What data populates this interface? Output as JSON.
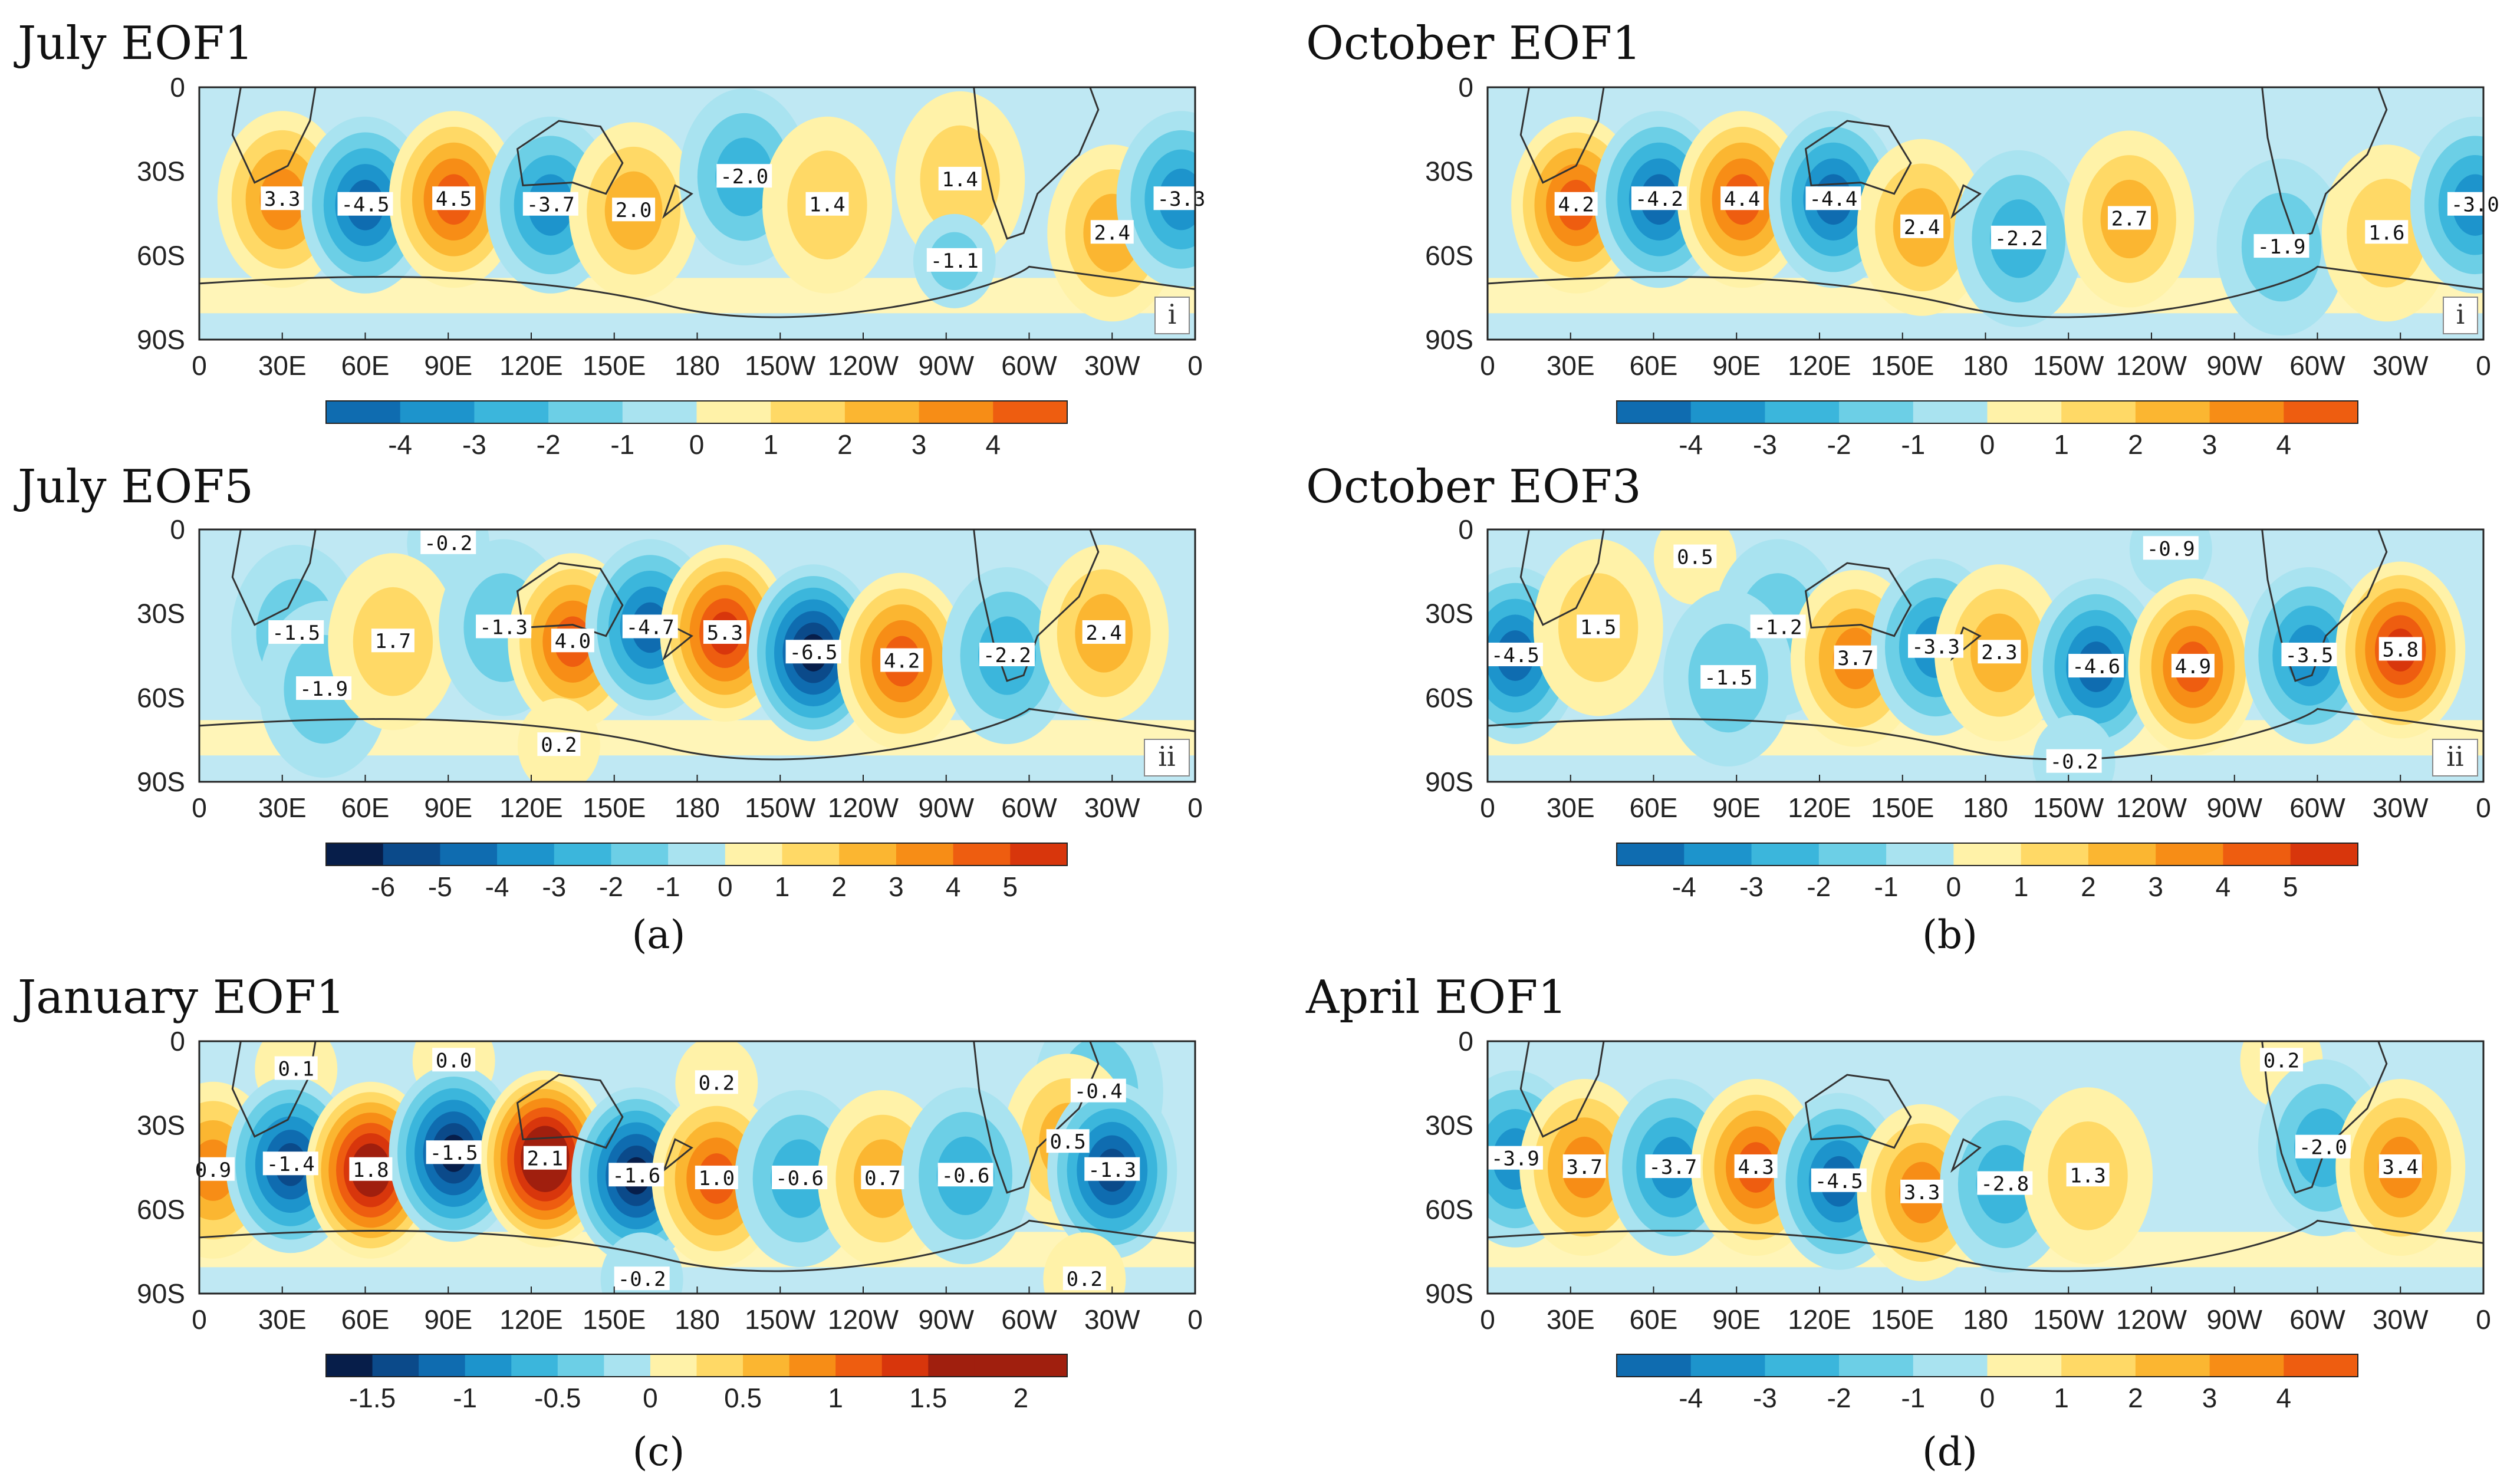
{
  "figure_labels": {
    "a": "(a)",
    "b": "(b)",
    "c": "(c)",
    "d": "(d)"
  },
  "chart_data": [
    {
      "type": "heatmap",
      "title": "July EOF1",
      "subpanel": "i",
      "xticks": [
        "0",
        "30E",
        "60E",
        "90E",
        "120E",
        "150E",
        "180",
        "150W",
        "120W",
        "90W",
        "60W",
        "30W",
        "0"
      ],
      "yticks": [
        "0",
        "30S",
        "60S",
        "90S"
      ],
      "colorbar": {
        "ticks": [
          "-4",
          "-3",
          "-2",
          "-1",
          "0",
          "1",
          "2",
          "3",
          "4"
        ],
        "min": -5,
        "max": 5,
        "step": 1
      },
      "centers": [
        {
          "lon": 30,
          "lat": -40,
          "value": 3.3
        },
        {
          "lon": 60,
          "lat": -42,
          "value": -4.5
        },
        {
          "lon": 92,
          "lat": -40,
          "value": 4.5
        },
        {
          "lon": 127,
          "lat": -42,
          "value": -3.7
        },
        {
          "lon": 157,
          "lat": -44,
          "value": 2.0
        },
        {
          "lon": 197,
          "lat": -32,
          "value": -2.0
        },
        {
          "lon": 227,
          "lat": -42,
          "value": 1.4
        },
        {
          "lon": 275,
          "lat": -33,
          "value": 1.4
        },
        {
          "lon": 273,
          "lat": -62,
          "value": -1.1
        },
        {
          "lon": 330,
          "lat": -52,
          "value": 2.4
        },
        {
          "lon": 355,
          "lat": -40,
          "value": -3.3
        }
      ]
    },
    {
      "type": "heatmap",
      "title": "October EOF1",
      "subpanel": "i",
      "xticks": [
        "0",
        "30E",
        "60E",
        "90E",
        "120E",
        "150E",
        "180",
        "150W",
        "120W",
        "90W",
        "60W",
        "30W",
        "0"
      ],
      "yticks": [
        "0",
        "30S",
        "60S",
        "90S"
      ],
      "colorbar": {
        "ticks": [
          "-4",
          "-3",
          "-2",
          "-1",
          "0",
          "1",
          "2",
          "3",
          "4"
        ],
        "min": -5,
        "max": 5,
        "step": 1
      },
      "centers": [
        {
          "lon": 32,
          "lat": -42,
          "value": 4.2
        },
        {
          "lon": 62,
          "lat": -40,
          "value": -4.2
        },
        {
          "lon": 92,
          "lat": -40,
          "value": 4.4
        },
        {
          "lon": 125,
          "lat": -40,
          "value": -4.4
        },
        {
          "lon": 157,
          "lat": -50,
          "value": 2.4
        },
        {
          "lon": 192,
          "lat": -54,
          "value": -2.2
        },
        {
          "lon": 232,
          "lat": -47,
          "value": 2.7
        },
        {
          "lon": 287,
          "lat": -57,
          "value": -1.9
        },
        {
          "lon": 325,
          "lat": -52,
          "value": 1.6
        },
        {
          "lon": 357,
          "lat": -42,
          "value": -3.0
        }
      ]
    },
    {
      "type": "heatmap",
      "title": "July EOF5",
      "subpanel": "ii",
      "xticks": [
        "0",
        "30E",
        "60E",
        "90E",
        "120E",
        "150E",
        "180",
        "150W",
        "120W",
        "90W",
        "60W",
        "30W",
        "0"
      ],
      "yticks": [
        "0",
        "30S",
        "60S",
        "90S"
      ],
      "colorbar": {
        "ticks": [
          "-6",
          "-5",
          "-4",
          "-3",
          "-2",
          "-1",
          "0",
          "1",
          "2",
          "3",
          "4",
          "5"
        ],
        "min": -7,
        "max": 6,
        "step": 1
      },
      "centers": [
        {
          "lon": 90,
          "lat": -5,
          "value": -0.2
        },
        {
          "lon": 35,
          "lat": -37,
          "value": -1.5
        },
        {
          "lon": 45,
          "lat": -57,
          "value": -1.9
        },
        {
          "lon": 70,
          "lat": -40,
          "value": 1.7
        },
        {
          "lon": 110,
          "lat": -35,
          "value": -1.3
        },
        {
          "lon": 135,
          "lat": -40,
          "value": 4.0
        },
        {
          "lon": 163,
          "lat": -35,
          "value": -4.7
        },
        {
          "lon": 190,
          "lat": -37,
          "value": 5.3
        },
        {
          "lon": 222,
          "lat": -44,
          "value": -6.5
        },
        {
          "lon": 254,
          "lat": -47,
          "value": 4.2
        },
        {
          "lon": 292,
          "lat": -45,
          "value": -2.2
        },
        {
          "lon": 327,
          "lat": -37,
          "value": 2.4
        },
        {
          "lon": 130,
          "lat": -77,
          "value": 0.2
        }
      ]
    },
    {
      "type": "heatmap",
      "title": "October EOF3",
      "subpanel": "ii",
      "xticks": [
        "0",
        "30E",
        "60E",
        "90E",
        "120E",
        "150E",
        "180",
        "150W",
        "120W",
        "90W",
        "60W",
        "30W",
        "0"
      ],
      "yticks": [
        "0",
        "30S",
        "60S",
        "90S"
      ],
      "colorbar": {
        "ticks": [
          "-4",
          "-3",
          "-2",
          "-1",
          "0",
          "1",
          "2",
          "3",
          "4",
          "5"
        ],
        "min": -5,
        "max": 6,
        "step": 1
      },
      "centers": [
        {
          "lon": 75,
          "lat": -10,
          "value": 0.5
        },
        {
          "lon": 247,
          "lat": -7,
          "value": -0.9
        },
        {
          "lon": 10,
          "lat": -45,
          "value": -4.5
        },
        {
          "lon": 40,
          "lat": -35,
          "value": 1.5
        },
        {
          "lon": 105,
          "lat": -35,
          "value": -1.2
        },
        {
          "lon": 87,
          "lat": -53,
          "value": -1.5
        },
        {
          "lon": 133,
          "lat": -46,
          "value": 3.7
        },
        {
          "lon": 162,
          "lat": -42,
          "value": -3.3
        },
        {
          "lon": 185,
          "lat": -44,
          "value": 2.3
        },
        {
          "lon": 220,
          "lat": -49,
          "value": -4.6
        },
        {
          "lon": 255,
          "lat": -49,
          "value": 4.9
        },
        {
          "lon": 297,
          "lat": -45,
          "value": -3.5
        },
        {
          "lon": 330,
          "lat": -43,
          "value": 5.8
        },
        {
          "lon": 212,
          "lat": -83,
          "value": -0.2
        }
      ]
    },
    {
      "type": "heatmap",
      "title": "January EOF1",
      "subpanel": "",
      "xticks": [
        "0",
        "30E",
        "60E",
        "90E",
        "120E",
        "150E",
        "180",
        "150W",
        "120W",
        "90W",
        "60W",
        "30W",
        "0"
      ],
      "yticks": [
        "0",
        "30S",
        "60S",
        "90S"
      ],
      "colorbar": {
        "ticks": [
          "-1.5",
          "-1",
          "-0.5",
          "0",
          "0.5",
          "1",
          "1.5",
          "2"
        ],
        "min": -1.75,
        "max": 2.25,
        "step": 0.25
      },
      "centers": [
        {
          "lon": 35,
          "lat": -10,
          "value": 0.1
        },
        {
          "lon": 92,
          "lat": -7,
          "value": 0.0
        },
        {
          "lon": 187,
          "lat": -15,
          "value": 0.2
        },
        {
          "lon": 325,
          "lat": -18,
          "value": -0.4
        },
        {
          "lon": 314,
          "lat": -36,
          "value": 0.5
        },
        {
          "lon": 5,
          "lat": -46,
          "value": 0.9
        },
        {
          "lon": 33,
          "lat": -44,
          "value": -1.4
        },
        {
          "lon": 62,
          "lat": -46,
          "value": 1.8
        },
        {
          "lon": 92,
          "lat": -40,
          "value": -1.5
        },
        {
          "lon": 125,
          "lat": -42,
          "value": 2.1
        },
        {
          "lon": 158,
          "lat": -48,
          "value": -1.6
        },
        {
          "lon": 187,
          "lat": -49,
          "value": 1.0
        },
        {
          "lon": 217,
          "lat": -49,
          "value": -0.6
        },
        {
          "lon": 247,
          "lat": -49,
          "value": 0.7
        },
        {
          "lon": 277,
          "lat": -48,
          "value": -0.6
        },
        {
          "lon": 330,
          "lat": -46,
          "value": -1.3
        },
        {
          "lon": 160,
          "lat": -85,
          "value": -0.2
        },
        {
          "lon": 320,
          "lat": -85,
          "value": 0.2
        }
      ]
    },
    {
      "type": "heatmap",
      "title": "April EOF1",
      "subpanel": "",
      "xticks": [
        "0",
        "30E",
        "60E",
        "90E",
        "120E",
        "150E",
        "180",
        "150W",
        "120W",
        "90W",
        "60W",
        "30W",
        "0"
      ],
      "yticks": [
        "0",
        "30S",
        "60S",
        "90S"
      ],
      "colorbar": {
        "ticks": [
          "-4",
          "-3",
          "-2",
          "-1",
          "0",
          "1",
          "2",
          "3",
          "4"
        ],
        "min": -5,
        "max": 5,
        "step": 1
      },
      "centers": [
        {
          "lon": 287,
          "lat": -7,
          "value": 0.2
        },
        {
          "lon": 10,
          "lat": -42,
          "value": -3.9
        },
        {
          "lon": 35,
          "lat": -45,
          "value": 3.7
        },
        {
          "lon": 67,
          "lat": -45,
          "value": -3.7
        },
        {
          "lon": 97,
          "lat": -45,
          "value": 4.3
        },
        {
          "lon": 127,
          "lat": -50,
          "value": -4.5
        },
        {
          "lon": 157,
          "lat": -54,
          "value": 3.3
        },
        {
          "lon": 187,
          "lat": -51,
          "value": -2.8
        },
        {
          "lon": 217,
          "lat": -48,
          "value": 1.3
        },
        {
          "lon": 302,
          "lat": -38,
          "value": -2.0
        },
        {
          "lon": 330,
          "lat": -45,
          "value": 3.4
        }
      ]
    }
  ]
}
